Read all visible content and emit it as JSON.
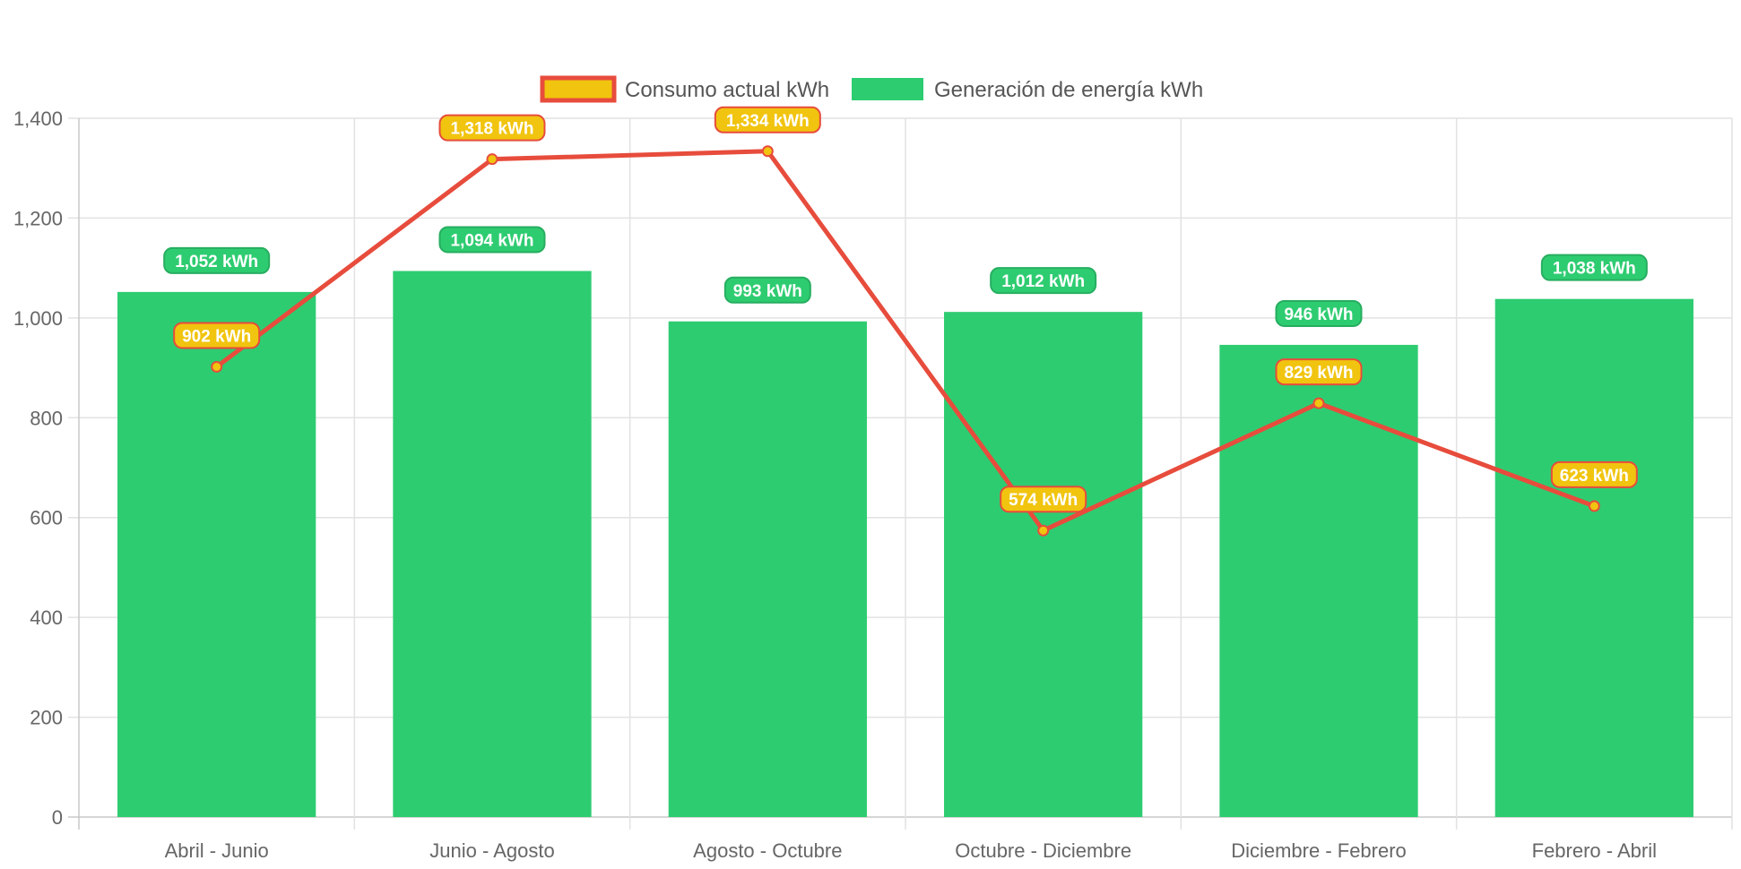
{
  "chart_data": {
    "type": "bar",
    "categories": [
      "Abril - Junio",
      "Junio - Agosto",
      "Agosto - Octubre",
      "Octubre - Diciembre",
      "Diciembre - Febrero",
      "Febrero - Abril"
    ],
    "series": [
      {
        "name": "Consumo actual kWh",
        "type": "line",
        "values": [
          902,
          1318,
          1334,
          574,
          829,
          623
        ],
        "labels": [
          "902 kWh",
          "1,318 kWh",
          "1,334 kWh",
          "574 kWh",
          "829 kWh",
          "623 kWh"
        ],
        "line_color": "#e74c3c",
        "fill_color": "#f1c40f"
      },
      {
        "name": "Generación de energía kWh",
        "type": "bar",
        "values": [
          1052,
          1094,
          993,
          1012,
          946,
          1038
        ],
        "labels": [
          "1,052 kWh",
          "1,094 kWh",
          "993 kWh",
          "1,012 kWh",
          "946 kWh",
          "1,038 kWh"
        ],
        "color": "#2ecc71"
      }
    ],
    "ylim": [
      0,
      1400
    ],
    "yticks": [
      "0",
      "200",
      "400",
      "600",
      "800",
      "1,000",
      "1,200",
      "1,400"
    ],
    "ytick_values": [
      0,
      200,
      400,
      600,
      800,
      1000,
      1200,
      1400
    ],
    "grid": true,
    "legend_position": "top-center"
  }
}
